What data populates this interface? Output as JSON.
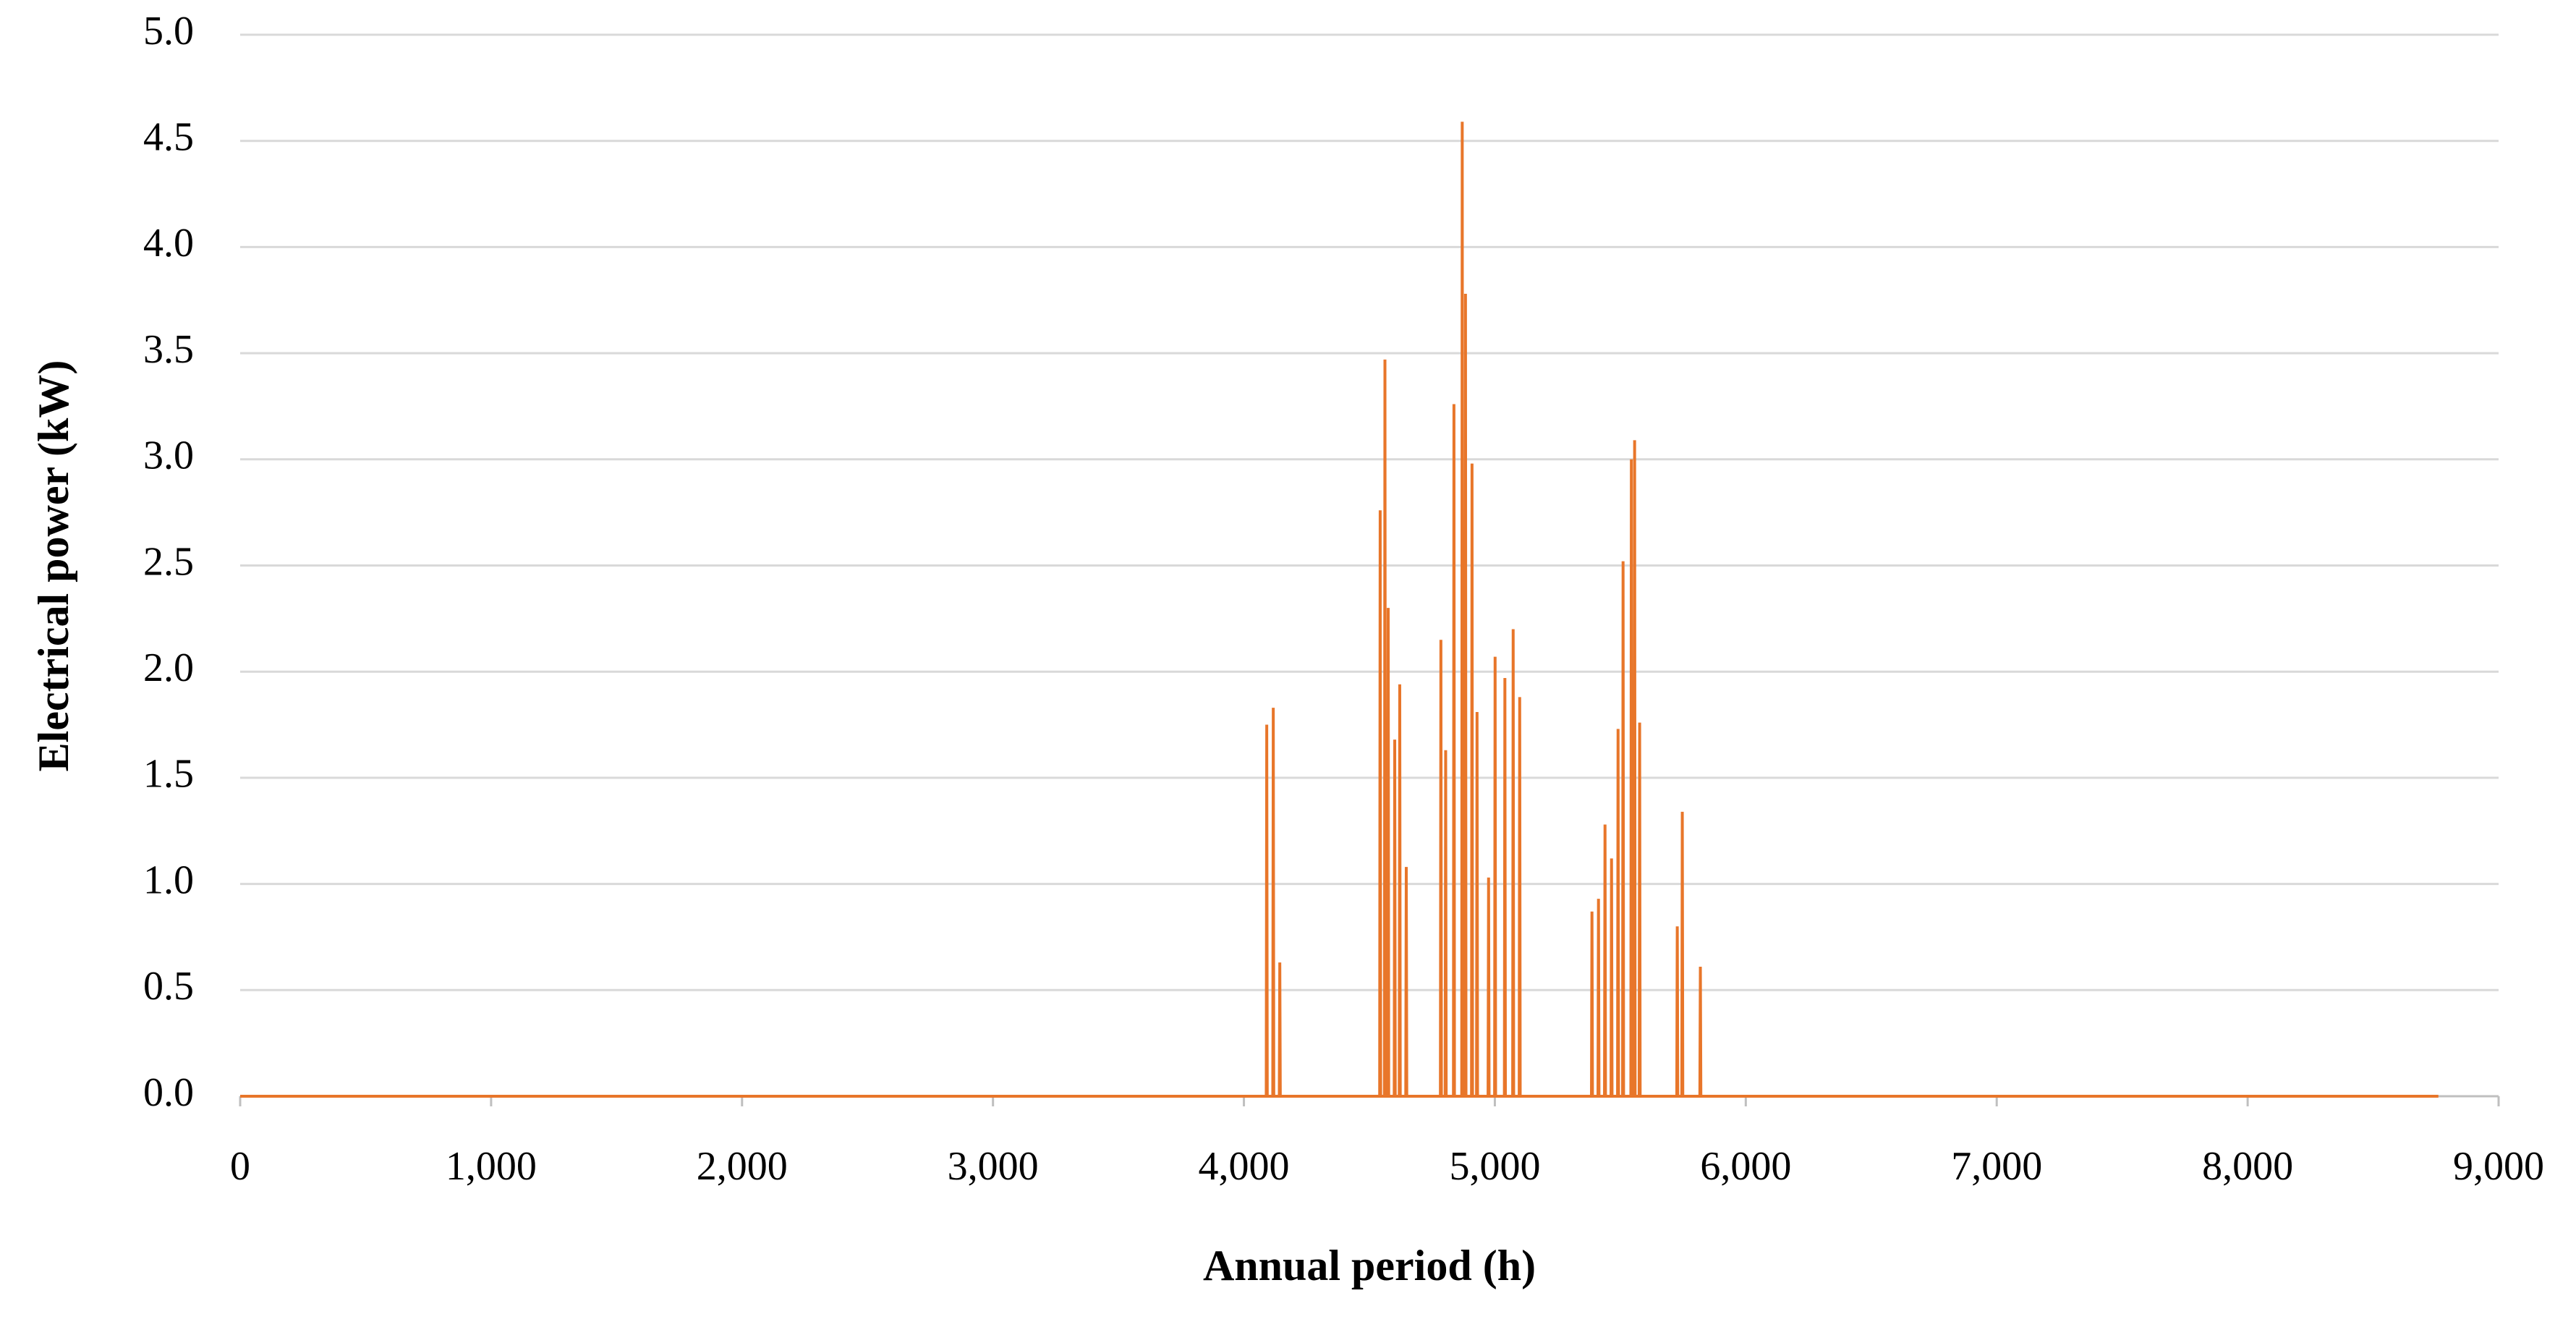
{
  "chart_data": {
    "type": "line",
    "xlabel": "Annual period (h)",
    "ylabel": "Electrical power (kW)",
    "color": "#e8762a",
    "grid": true,
    "x": [
      0,
      4089,
      4091,
      4093,
      4115,
      4117,
      4119,
      4141,
      4143,
      4145,
      4541,
      4543,
      4545,
      4560,
      4562,
      4564,
      4573,
      4575,
      4577,
      4599,
      4601,
      4603,
      4619,
      4621,
      4623,
      4645,
      4647,
      4649,
      4783,
      4785,
      4787,
      4802,
      4804,
      4806,
      4835,
      4837,
      4839,
      4868,
      4870,
      4872,
      4881,
      4883,
      4885,
      4907,
      4909,
      4911,
      4927,
      4929,
      4931,
      4973,
      4975,
      4977,
      4999,
      5001,
      5003,
      5038,
      5040,
      5042,
      5071,
      5073,
      5075,
      5097,
      5099,
      5101,
      5385,
      5387,
      5389,
      5411,
      5413,
      5415,
      5437,
      5439,
      5441,
      5463,
      5465,
      5467,
      5489,
      5491,
      5493,
      5509,
      5511,
      5513,
      5542,
      5544,
      5546,
      5555,
      5557,
      5559,
      5575,
      5577,
      5579,
      5725,
      5727,
      5729,
      5745,
      5747,
      5749,
      5817,
      5819,
      5821,
      8760
    ],
    "values": [
      0,
      0,
      1.75,
      0,
      0,
      1.83,
      0,
      0,
      0.63,
      0,
      0,
      2.76,
      0,
      0,
      3.47,
      0,
      0,
      2.3,
      0,
      0,
      1.68,
      0,
      0,
      1.94,
      0,
      0,
      1.08,
      0,
      0,
      2.15,
      0,
      0,
      1.63,
      0,
      0,
      3.26,
      0,
      0,
      4.59,
      0,
      0,
      3.78,
      0,
      0,
      2.98,
      0,
      0,
      1.81,
      0,
      0,
      1.03,
      0,
      0,
      2.07,
      0,
      0,
      1.97,
      0,
      0,
      2.2,
      0,
      0,
      1.88,
      0,
      0,
      0.87,
      0,
      0,
      0.93,
      0,
      0,
      1.28,
      0,
      0,
      1.12,
      0,
      0,
      1.73,
      0,
      0,
      2.52,
      0,
      0,
      3.0,
      0,
      0,
      3.09,
      0,
      0,
      1.76,
      0,
      0,
      0.8,
      0,
      0,
      1.34,
      0,
      0,
      0.61,
      0,
      0
    ],
    "xlim": [
      0,
      9000
    ],
    "xticks": [
      0,
      {
        "value": 1000,
        "label": "1,000"
      },
      {
        "value": 2000,
        "label": "2,000"
      },
      {
        "value": 3000,
        "label": "3,000"
      },
      {
        "value": 4000,
        "label": "4,000"
      },
      {
        "value": 5000,
        "label": "5,000"
      },
      {
        "value": 6000,
        "label": "6,000"
      },
      {
        "value": 7000,
        "label": "7,000"
      },
      {
        "value": 8000,
        "label": "8,000"
      },
      {
        "value": 9000,
        "label": "9,000"
      }
    ],
    "ylim": [
      0,
      5
    ],
    "yticks": [
      {
        "value": 0,
        "label": "0.0"
      },
      {
        "value": 0.5,
        "label": "0.5"
      },
      {
        "value": 1,
        "label": "1.0"
      },
      {
        "value": 1.5,
        "label": "1.5"
      },
      {
        "value": 2,
        "label": "2.0"
      },
      {
        "value": 2.5,
        "label": "2.5"
      },
      {
        "value": 3,
        "label": "3.0"
      },
      {
        "value": 3.5,
        "label": "3.5"
      },
      {
        "value": 4,
        "label": "4.0"
      },
      {
        "value": 4.5,
        "label": "4.5"
      },
      {
        "value": 5,
        "label": "5.0"
      }
    ]
  }
}
